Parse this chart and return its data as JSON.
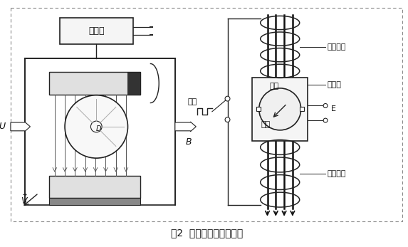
{
  "title": "图2  电磁流量计工作原理",
  "background_color": "#ffffff",
  "line_color": "#222222",
  "text_color": "#111111",
  "fig_width": 5.73,
  "fig_height": 3.47,
  "dpi": 100,
  "labels": {
    "converter": "转换器",
    "fangbo": "方波",
    "dianju": "电极",
    "liusu": "流速",
    "cilianguan": "测量管",
    "excite_coil_top": "励磁线圈",
    "excite_coil_bot": "励磁线圈",
    "E": "E",
    "U": "U",
    "B": "B",
    "D": "D"
  }
}
